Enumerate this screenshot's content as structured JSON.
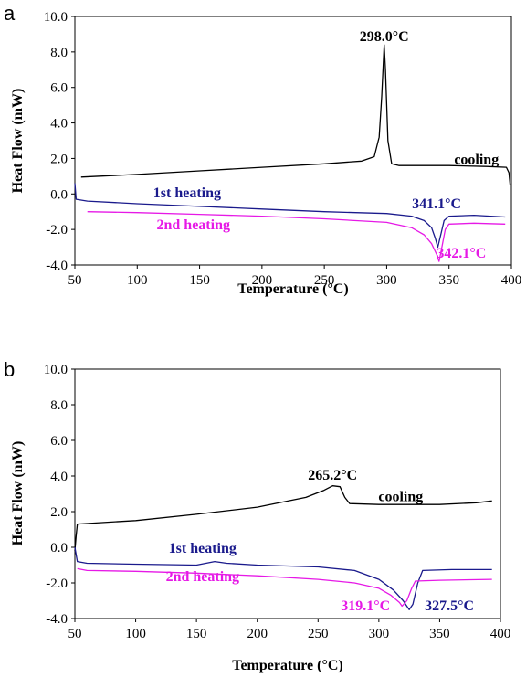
{
  "colors": {
    "cooling": "#000000",
    "first_heating": "#1a1a8c",
    "second_heating": "#e619e6"
  },
  "chart_data": [
    {
      "panel": "a",
      "type": "line",
      "xlabel": "Temperature (°C)",
      "ylabel": "Heat Flow (mW)",
      "xlim": [
        50,
        400
      ],
      "ylim": [
        -4.0,
        10.0
      ],
      "xticks": [
        "50",
        "100",
        "150",
        "200",
        "250",
        "300",
        "350",
        "400"
      ],
      "yticks": [
        "10.0",
        "8.0",
        "6.0",
        "4.0",
        "2.0",
        "0.0",
        "-2.0",
        "-4.0"
      ],
      "series": [
        {
          "name": "cooling",
          "color": "cooling",
          "points": [
            [
              55,
              0.95
            ],
            [
              100,
              1.1
            ],
            [
              150,
              1.3
            ],
            [
              200,
              1.5
            ],
            [
              250,
              1.7
            ],
            [
              280,
              1.85
            ],
            [
              290,
              2.1
            ],
            [
              294,
              3.2
            ],
            [
              296,
              5.5
            ],
            [
              298,
              8.4
            ],
            [
              299,
              7.0
            ],
            [
              301,
              3.0
            ],
            [
              304,
              1.7
            ],
            [
              310,
              1.6
            ],
            [
              350,
              1.6
            ],
            [
              380,
              1.55
            ],
            [
              396,
              1.5
            ],
            [
              398,
              1.2
            ],
            [
              399,
              0.5
            ]
          ]
        },
        {
          "name": "1st heating",
          "color": "first_heating",
          "points": [
            [
              50,
              0.6
            ],
            [
              51,
              -0.3
            ],
            [
              60,
              -0.4
            ],
            [
              100,
              -0.55
            ],
            [
              150,
              -0.7
            ],
            [
              200,
              -0.85
            ],
            [
              250,
              -1.0
            ],
            [
              300,
              -1.1
            ],
            [
              320,
              -1.25
            ],
            [
              330,
              -1.5
            ],
            [
              336,
              -1.9
            ],
            [
              339,
              -2.5
            ],
            [
              341,
              -3.0
            ],
            [
              343,
              -2.4
            ],
            [
              346,
              -1.5
            ],
            [
              350,
              -1.25
            ],
            [
              370,
              -1.2
            ],
            [
              395,
              -1.3
            ]
          ]
        },
        {
          "name": "2nd heating",
          "color": "second_heating",
          "points": [
            [
              60,
              -1.0
            ],
            [
              100,
              -1.05
            ],
            [
              150,
              -1.15
            ],
            [
              200,
              -1.25
            ],
            [
              250,
              -1.4
            ],
            [
              300,
              -1.6
            ],
            [
              320,
              -1.9
            ],
            [
              330,
              -2.3
            ],
            [
              336,
              -2.8
            ],
            [
              340,
              -3.4
            ],
            [
              342,
              -3.8
            ],
            [
              344,
              -3.1
            ],
            [
              347,
              -2.0
            ],
            [
              350,
              -1.7
            ],
            [
              370,
              -1.65
            ],
            [
              395,
              -1.7
            ]
          ]
        }
      ],
      "annotations": [
        {
          "text": "298.0°C",
          "x": 298,
          "y": 8.6,
          "color": "cooling"
        },
        {
          "text": "cooling",
          "x": 372,
          "y": 1.7,
          "color": "cooling"
        },
        {
          "text": "1st heating",
          "x": 140,
          "y": -0.2,
          "color": "first_heating"
        },
        {
          "text": "2nd heating",
          "x": 145,
          "y": -2.0,
          "color": "second_heating"
        },
        {
          "text": "341.1°C",
          "x": 340,
          "y": -0.8,
          "color": "first_heating"
        },
        {
          "text": "342.1°C",
          "x": 360,
          "y": -3.6,
          "color": "second_heating"
        }
      ]
    },
    {
      "panel": "b",
      "type": "line",
      "xlabel": "Temperature (°C)",
      "ylabel": "Heat Flow (mW)",
      "xlim": [
        50,
        400
      ],
      "ylim": [
        -4.0,
        10.0
      ],
      "xticks": [
        "50",
        "100",
        "150",
        "200",
        "250",
        "300",
        "350",
        "400"
      ],
      "yticks": [
        "10.0",
        "8.0",
        "6.0",
        "4.0",
        "2.0",
        "0.0",
        "-2.0",
        "-4.0"
      ],
      "series": [
        {
          "name": "cooling",
          "color": "cooling",
          "points": [
            [
              50,
              -0.2
            ],
            [
              51,
              0.6
            ],
            [
              52,
              1.3
            ],
            [
              100,
              1.5
            ],
            [
              150,
              1.85
            ],
            [
              200,
              2.25
            ],
            [
              240,
              2.8
            ],
            [
              255,
              3.2
            ],
            [
              262,
              3.45
            ],
            [
              268,
              3.4
            ],
            [
              272,
              2.8
            ],
            [
              276,
              2.45
            ],
            [
              300,
              2.4
            ],
            [
              350,
              2.4
            ],
            [
              380,
              2.5
            ],
            [
              393,
              2.6
            ]
          ]
        },
        {
          "name": "1st heating",
          "color": "first_heating",
          "points": [
            [
              50,
              0.0
            ],
            [
              52,
              -0.8
            ],
            [
              60,
              -0.9
            ],
            [
              100,
              -0.95
            ],
            [
              150,
              -1.0
            ],
            [
              165,
              -0.8
            ],
            [
              175,
              -0.9
            ],
            [
              200,
              -1.0
            ],
            [
              250,
              -1.1
            ],
            [
              280,
              -1.3
            ],
            [
              300,
              -1.8
            ],
            [
              312,
              -2.4
            ],
            [
              320,
              -3.0
            ],
            [
              325,
              -3.5
            ],
            [
              328,
              -3.2
            ],
            [
              332,
              -2.0
            ],
            [
              336,
              -1.3
            ],
            [
              360,
              -1.25
            ],
            [
              393,
              -1.25
            ]
          ]
        },
        {
          "name": "2nd heating",
          "color": "second_heating",
          "points": [
            [
              52,
              -1.2
            ],
            [
              60,
              -1.3
            ],
            [
              100,
              -1.35
            ],
            [
              150,
              -1.45
            ],
            [
              200,
              -1.6
            ],
            [
              250,
              -1.8
            ],
            [
              280,
              -2.0
            ],
            [
              300,
              -2.3
            ],
            [
              310,
              -2.7
            ],
            [
              317,
              -3.1
            ],
            [
              319,
              -3.3
            ],
            [
              323,
              -3.0
            ],
            [
              327,
              -2.3
            ],
            [
              330,
              -1.9
            ],
            [
              350,
              -1.85
            ],
            [
              393,
              -1.8
            ]
          ]
        }
      ],
      "annotations": [
        {
          "text": "265.2°C",
          "x": 262,
          "y": 3.8,
          "color": "cooling"
        },
        {
          "text": "cooling",
          "x": 318,
          "y": 2.6,
          "color": "cooling"
        },
        {
          "text": "1st heating",
          "x": 155,
          "y": -0.3,
          "color": "first_heating"
        },
        {
          "text": "2nd heating",
          "x": 155,
          "y": -1.9,
          "color": "second_heating"
        },
        {
          "text": "319.1°C",
          "x": 289,
          "y": -3.55,
          "color": "second_heating"
        },
        {
          "text": "327.5°C",
          "x": 358,
          "y": -3.55,
          "color": "first_heating"
        }
      ]
    }
  ]
}
